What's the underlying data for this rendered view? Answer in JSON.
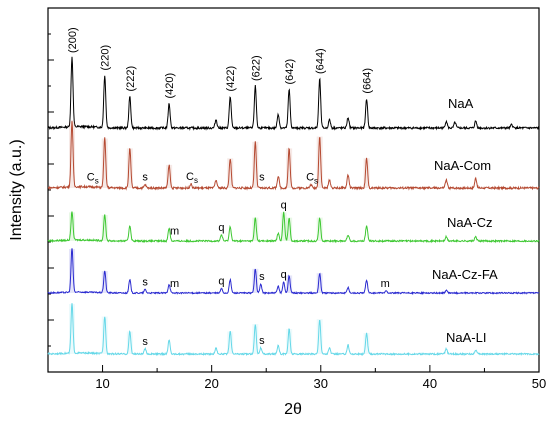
{
  "chart_data": {
    "type": "line",
    "xlabel": "2θ",
    "ylabel": "Intensity (a.u.)",
    "xlim": [
      5,
      50
    ],
    "x_ticks": [
      10,
      20,
      30,
      40,
      50
    ],
    "x_tick_labels": [
      "10",
      "20",
      "30",
      "40",
      "50"
    ],
    "y_ticks_unlabeled": true,
    "legend": "none",
    "grid": false,
    "series": [
      {
        "name": "NaA",
        "color": "#000000",
        "peaks": [
          {
            "x": 7.2,
            "h": 1.0
          },
          {
            "x": 10.2,
            "h": 0.75
          },
          {
            "x": 12.5,
            "h": 0.45
          },
          {
            "x": 16.1,
            "h": 0.35
          },
          {
            "x": 20.4,
            "h": 0.12
          },
          {
            "x": 21.7,
            "h": 0.45
          },
          {
            "x": 24.0,
            "h": 0.6
          },
          {
            "x": 26.1,
            "h": 0.2
          },
          {
            "x": 27.1,
            "h": 0.55
          },
          {
            "x": 29.9,
            "h": 0.7
          },
          {
            "x": 30.8,
            "h": 0.12
          },
          {
            "x": 32.5,
            "h": 0.15
          },
          {
            "x": 34.2,
            "h": 0.42
          },
          {
            "x": 41.5,
            "h": 0.1
          },
          {
            "x": 42.3,
            "h": 0.08
          },
          {
            "x": 44.2,
            "h": 0.1
          },
          {
            "x": 47.5,
            "h": 0.05
          }
        ]
      },
      {
        "name": "NaA-Com",
        "color": "#b54a32",
        "peaks": [
          {
            "x": 7.2,
            "h": 1.0
          },
          {
            "x": 10.2,
            "h": 0.75
          },
          {
            "x": 12.5,
            "h": 0.6
          },
          {
            "x": 13.9,
            "h": 0.05
          },
          {
            "x": 16.1,
            "h": 0.35
          },
          {
            "x": 18.1,
            "h": 0.06
          },
          {
            "x": 20.4,
            "h": 0.12
          },
          {
            "x": 21.7,
            "h": 0.45
          },
          {
            "x": 24.0,
            "h": 0.7
          },
          {
            "x": 26.1,
            "h": 0.18
          },
          {
            "x": 27.1,
            "h": 0.6
          },
          {
            "x": 29.1,
            "h": 0.05
          },
          {
            "x": 29.9,
            "h": 0.78
          },
          {
            "x": 30.8,
            "h": 0.12
          },
          {
            "x": 32.5,
            "h": 0.2
          },
          {
            "x": 34.2,
            "h": 0.45
          },
          {
            "x": 41.5,
            "h": 0.12
          },
          {
            "x": 44.2,
            "h": 0.15
          }
        ]
      },
      {
        "name": "NaA-Cz",
        "color": "#3ec832",
        "peaks": [
          {
            "x": 7.2,
            "h": 0.55
          },
          {
            "x": 10.2,
            "h": 0.5
          },
          {
            "x": 12.5,
            "h": 0.3
          },
          {
            "x": 16.1,
            "h": 0.25
          },
          {
            "x": 20.9,
            "h": 0.12
          },
          {
            "x": 21.7,
            "h": 0.28
          },
          {
            "x": 24.0,
            "h": 0.45
          },
          {
            "x": 26.1,
            "h": 0.15
          },
          {
            "x": 26.6,
            "h": 0.55
          },
          {
            "x": 27.1,
            "h": 0.45
          },
          {
            "x": 29.9,
            "h": 0.45
          },
          {
            "x": 32.5,
            "h": 0.12
          },
          {
            "x": 34.2,
            "h": 0.3
          },
          {
            "x": 41.5,
            "h": 0.08
          },
          {
            "x": 44.2,
            "h": 0.08
          }
        ]
      },
      {
        "name": "NaA-Cz-FA",
        "color": "#2b2bd0",
        "peaks": [
          {
            "x": 7.2,
            "h": 1.0
          },
          {
            "x": 10.2,
            "h": 0.5
          },
          {
            "x": 12.5,
            "h": 0.3
          },
          {
            "x": 13.9,
            "h": 0.08
          },
          {
            "x": 16.1,
            "h": 0.2
          },
          {
            "x": 20.9,
            "h": 0.1
          },
          {
            "x": 21.7,
            "h": 0.3
          },
          {
            "x": 24.0,
            "h": 0.55
          },
          {
            "x": 24.5,
            "h": 0.2
          },
          {
            "x": 26.1,
            "h": 0.15
          },
          {
            "x": 26.6,
            "h": 0.25
          },
          {
            "x": 27.1,
            "h": 0.4
          },
          {
            "x": 29.9,
            "h": 0.45
          },
          {
            "x": 32.5,
            "h": 0.12
          },
          {
            "x": 34.2,
            "h": 0.3
          },
          {
            "x": 36.0,
            "h": 0.05
          },
          {
            "x": 41.5,
            "h": 0.06
          }
        ]
      },
      {
        "name": "NaA-LI",
        "color": "#66d8e8",
        "peaks": [
          {
            "x": 7.2,
            "h": 1.0
          },
          {
            "x": 10.2,
            "h": 0.75
          },
          {
            "x": 12.5,
            "h": 0.45
          },
          {
            "x": 13.9,
            "h": 0.1
          },
          {
            "x": 16.1,
            "h": 0.28
          },
          {
            "x": 20.4,
            "h": 0.12
          },
          {
            "x": 21.7,
            "h": 0.45
          },
          {
            "x": 24.0,
            "h": 0.6
          },
          {
            "x": 24.5,
            "h": 0.12
          },
          {
            "x": 26.1,
            "h": 0.18
          },
          {
            "x": 27.1,
            "h": 0.5
          },
          {
            "x": 29.9,
            "h": 0.7
          },
          {
            "x": 30.8,
            "h": 0.12
          },
          {
            "x": 32.5,
            "h": 0.18
          },
          {
            "x": 34.2,
            "h": 0.42
          },
          {
            "x": 41.5,
            "h": 0.1
          },
          {
            "x": 44.2,
            "h": 0.08
          }
        ]
      }
    ],
    "hkl_labels": [
      {
        "text": "(200)",
        "x": 7.2
      },
      {
        "text": "(220)",
        "x": 10.2
      },
      {
        "text": "(222)",
        "x": 12.5
      },
      {
        "text": "(420)",
        "x": 16.1
      },
      {
        "text": "(422)",
        "x": 21.7
      },
      {
        "text": "(622)",
        "x": 24.0
      },
      {
        "text": "(642)",
        "x": 27.1
      },
      {
        "text": "(644)",
        "x": 29.9
      },
      {
        "text": "(664)",
        "x": 34.2
      }
    ],
    "phase_annotations": [
      {
        "series": "NaA-Com",
        "text": "C",
        "sub": "s",
        "x": 9.1
      },
      {
        "series": "NaA-Com",
        "text": "s",
        "x": 13.9
      },
      {
        "series": "NaA-Com",
        "text": "C",
        "sub": "s",
        "x": 18.2
      },
      {
        "series": "NaA-Com",
        "text": "s",
        "x": 24.6
      },
      {
        "series": "NaA-Com",
        "text": "C",
        "sub": "s",
        "x": 29.2
      },
      {
        "series": "NaA-Cz",
        "text": "m",
        "x": 16.6
      },
      {
        "series": "NaA-Cz",
        "text": "q",
        "x": 20.9
      },
      {
        "series": "NaA-Cz",
        "text": "q",
        "x": 26.6
      },
      {
        "series": "NaA-Cz-FA",
        "text": "s",
        "x": 13.9
      },
      {
        "series": "NaA-Cz-FA",
        "text": "m",
        "x": 16.6
      },
      {
        "series": "NaA-Cz-FA",
        "text": "q",
        "x": 20.9
      },
      {
        "series": "NaA-Cz-FA",
        "text": "s",
        "x": 24.6
      },
      {
        "series": "NaA-Cz-FA",
        "text": "q",
        "x": 26.6
      },
      {
        "series": "NaA-Cz-FA",
        "text": "m",
        "x": 35.9
      },
      {
        "series": "NaA-LI",
        "text": "s",
        "x": 13.9
      },
      {
        "series": "NaA-LI",
        "text": "s",
        "x": 24.6
      }
    ]
  }
}
